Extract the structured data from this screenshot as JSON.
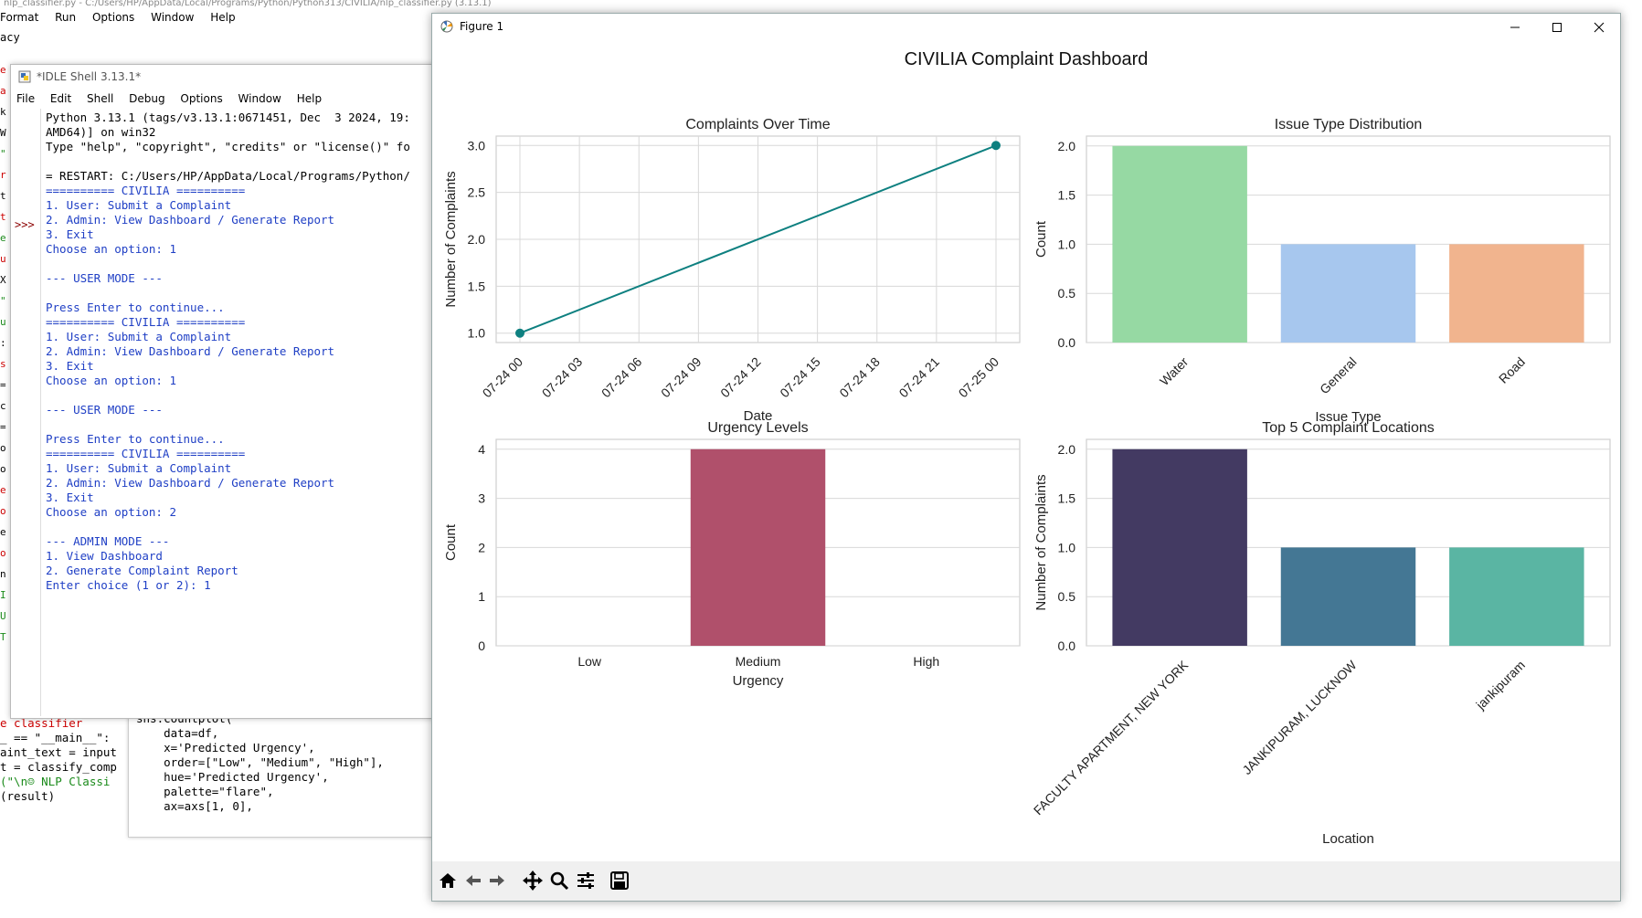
{
  "editor": {
    "title": "nlp_classifier.py - C:/Users/HP/AppData/Local/Programs/Python/Python313/CIVILIA/nlp_classifier.py (3.13.1)",
    "menu": [
      "Format",
      "Run",
      "Options",
      "Window",
      "Help"
    ],
    "first_line": "acy",
    "gutter_chars": [
      "e",
      "a",
      "k",
      "W",
      "\"",
      "r",
      "t",
      "t",
      "e",
      "u",
      "X",
      "\"",
      "u",
      ":",
      "s",
      "=",
      "c",
      "=",
      "o",
      "o",
      "e",
      "o",
      "e",
      "o",
      "n",
      "I",
      "U",
      "T"
    ],
    "code_lines": [
      "e classifier",
      "_ == \"__main__\":",
      "aint_text = input",
      "t = classify_comp",
      "(\"\\n☺ NLP Classi",
      "(result)"
    ]
  },
  "code_window": {
    "lines": [
      "sns.countplot(",
      "    data=df,",
      "    x='Predicted Urgency',",
      "    order=[\"Low\", \"Medium\", \"High\"],",
      "    hue='Predicted Urgency',",
      "    palette=\"flare\",",
      "    ax=axs[1, 0],"
    ]
  },
  "shell": {
    "title": "*IDLE Shell 3.13.1*",
    "menu": [
      "File",
      "Edit",
      "Shell",
      "Debug",
      "Options",
      "Window",
      "Help"
    ],
    "prompt": ">>>",
    "lines": [
      {
        "t": "Python 3.13.1 (tags/v3.13.1:0671451, Dec  3 2024, 19:",
        "c": "k"
      },
      {
        "t": "AMD64)] on win32",
        "c": "k"
      },
      {
        "t": "Type \"help\", \"copyright\", \"credits\" or \"license()\" fo",
        "c": "k"
      },
      {
        "t": "",
        "c": "k"
      },
      {
        "t": "= RESTART: C:/Users/HP/AppData/Local/Programs/Python/",
        "c": "k"
      },
      {
        "t": "========== CIVILIA ==========",
        "c": "b"
      },
      {
        "t": "1. User: Submit a Complaint",
        "c": "b"
      },
      {
        "t": "2. Admin: View Dashboard / Generate Report",
        "c": "b"
      },
      {
        "t": "3. Exit",
        "c": "b"
      },
      {
        "t": "Choose an option: 1",
        "c": "b"
      },
      {
        "t": "",
        "c": "b"
      },
      {
        "t": "--- USER MODE ---",
        "c": "b"
      },
      {
        "t": "",
        "c": "b"
      },
      {
        "t": "Press Enter to continue...",
        "c": "b"
      },
      {
        "t": "========== CIVILIA ==========",
        "c": "b"
      },
      {
        "t": "1. User: Submit a Complaint",
        "c": "b"
      },
      {
        "t": "2. Admin: View Dashboard / Generate Report",
        "c": "b"
      },
      {
        "t": "3. Exit",
        "c": "b"
      },
      {
        "t": "Choose an option: 1",
        "c": "b"
      },
      {
        "t": "",
        "c": "b"
      },
      {
        "t": "--- USER MODE ---",
        "c": "b"
      },
      {
        "t": "",
        "c": "b"
      },
      {
        "t": "Press Enter to continue...",
        "c": "b"
      },
      {
        "t": "========== CIVILIA ==========",
        "c": "b"
      },
      {
        "t": "1. User: Submit a Complaint",
        "c": "b"
      },
      {
        "t": "2. Admin: View Dashboard / Generate Report",
        "c": "b"
      },
      {
        "t": "3. Exit",
        "c": "b"
      },
      {
        "t": "Choose an option: 2",
        "c": "b"
      },
      {
        "t": "",
        "c": "b"
      },
      {
        "t": "--- ADMIN MODE ---",
        "c": "b"
      },
      {
        "t": "1. View Dashboard",
        "c": "b"
      },
      {
        "t": "2. Generate Complaint Report",
        "c": "b"
      },
      {
        "t": "Enter choice (1 or 2): 1",
        "c": "b"
      }
    ]
  },
  "figure": {
    "window_title": "Figure 1",
    "suptitle": "CIVILIA Complaint Dashboard",
    "toolbar_icons": [
      "home-icon",
      "back-arrow-icon",
      "forward-arrow-icon",
      "pan-move-icon",
      "zoom-magnifier-icon",
      "configure-subplots-icon",
      "save-disk-icon"
    ],
    "colors": {
      "line": "#0e8080",
      "grid": "#d8d8d8"
    }
  },
  "chart_data": [
    {
      "type": "line",
      "title": "Complaints Over Time",
      "xlabel": "Date",
      "ylabel": "Number of Complaints",
      "x_ticks": [
        "07-24 00",
        "07-24 03",
        "07-24 06",
        "07-24 09",
        "07-24 12",
        "07-24 15",
        "07-24 18",
        "07-24 21",
        "07-25 00"
      ],
      "x": [
        "07-24 00",
        "07-25 00"
      ],
      "values": [
        1,
        3
      ],
      "y_ticks": [
        "1.0",
        "1.5",
        "2.0",
        "2.5",
        "3.0"
      ],
      "ylim": [
        0.9,
        3.1
      ],
      "color": "#0e8080",
      "grid": true
    },
    {
      "type": "bar",
      "title": "Issue Type Distribution",
      "xlabel": "Issue Type",
      "ylabel": "Count",
      "categories": [
        "Water",
        "General",
        "Road"
      ],
      "values": [
        2,
        1,
        1
      ],
      "colors": [
        "#96d9a3",
        "#a7c7ee",
        "#f1b48e"
      ],
      "y_ticks": [
        "0.0",
        "0.5",
        "1.0",
        "1.5",
        "2.0"
      ],
      "ylim": [
        0,
        2.1
      ],
      "grid": true
    },
    {
      "type": "bar",
      "title": "Urgency Levels",
      "xlabel": "Urgency",
      "ylabel": "Count",
      "categories": [
        "Low",
        "Medium",
        "High"
      ],
      "values": [
        0,
        4,
        0
      ],
      "colors": [
        "#e5837a",
        "#b0506b",
        "#5e3a73"
      ],
      "y_ticks": [
        "0",
        "1",
        "2",
        "3",
        "4"
      ],
      "ylim": [
        0,
        4.2
      ],
      "grid": true
    },
    {
      "type": "bar",
      "title": "Top 5 Complaint Locations",
      "xlabel": "Location",
      "ylabel": "Number of Complaints",
      "categories": [
        "FACULTY APARTMENT, NEW YORK",
        "JANKIPURAM, LUCKNOW",
        "jankipuram"
      ],
      "values": [
        2,
        1,
        1
      ],
      "colors": [
        "#433a62",
        "#447794",
        "#5ab5a3"
      ],
      "y_ticks": [
        "0.0",
        "0.5",
        "1.0",
        "1.5",
        "2.0"
      ],
      "ylim": [
        0,
        2.1
      ],
      "grid": true
    }
  ]
}
